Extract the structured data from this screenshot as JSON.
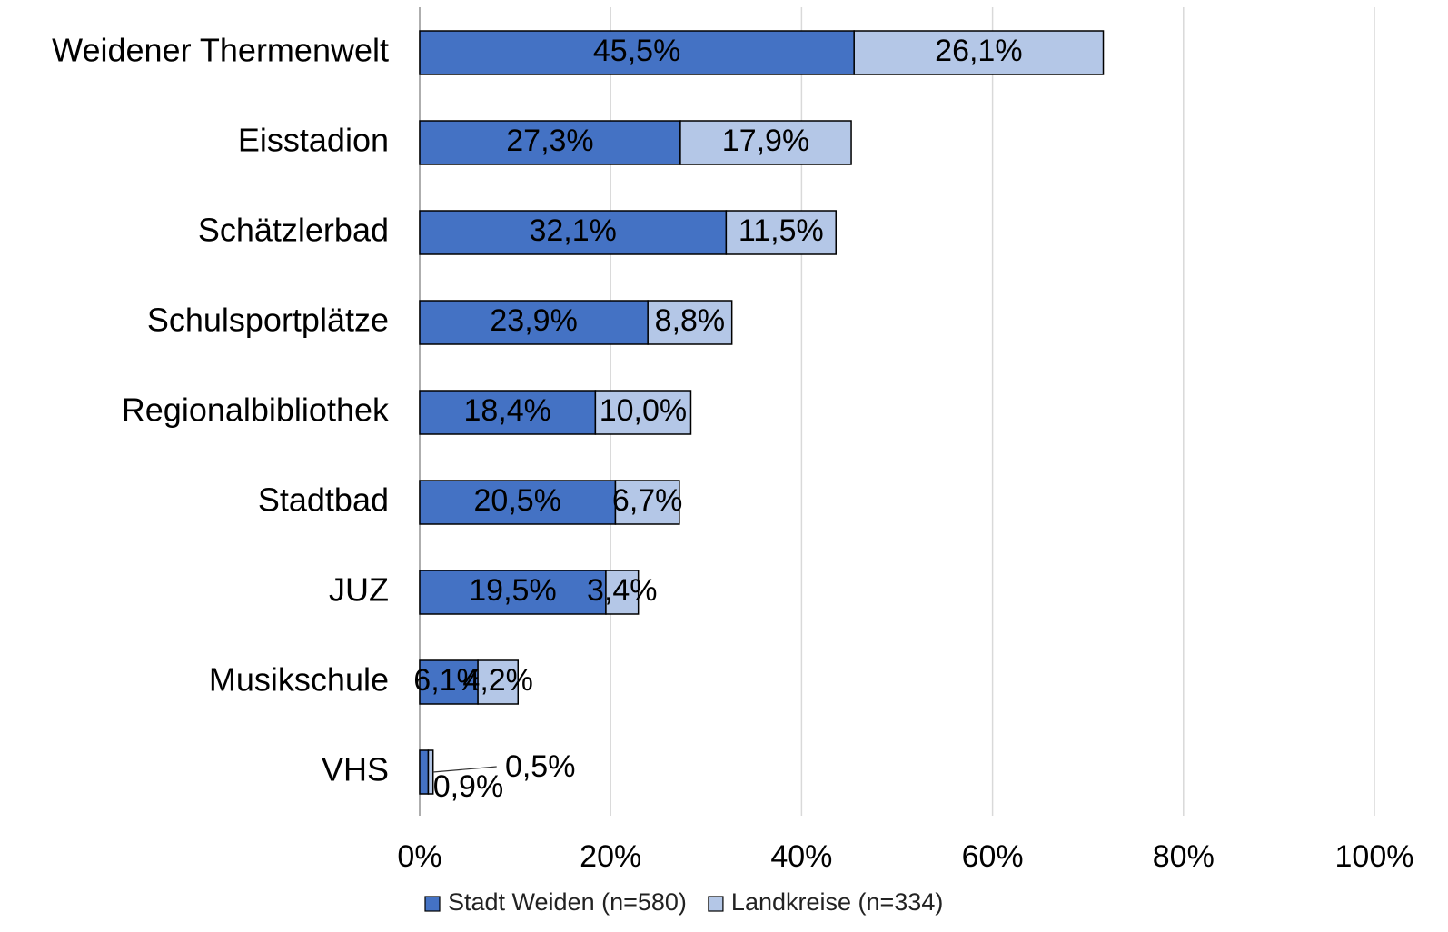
{
  "chart_data": {
    "type": "stacked-barh",
    "categories": [
      "Weidener Thermenwelt",
      "Eisstadion",
      "Schätzlerbad",
      "Schulsportplätze",
      "Regionalbibliothek",
      "Stadtbad",
      "JUZ",
      "Musikschule",
      "VHS"
    ],
    "series": [
      {
        "name": "Stadt Weiden (n=580)",
        "color": "#4472c4",
        "values": [
          45.5,
          27.3,
          32.1,
          23.9,
          18.4,
          20.5,
          19.5,
          6.1,
          0.9
        ],
        "value_labels": [
          "45,5%",
          "27,3%",
          "32,1%",
          "23,9%",
          "18,4%",
          "20,5%",
          "19,5%",
          "6,1%",
          "0,9%"
        ]
      },
      {
        "name": "Landkreise (n=334)",
        "color": "#b4c7e7",
        "values": [
          26.1,
          17.9,
          11.5,
          8.8,
          10.0,
          6.7,
          3.4,
          4.2,
          0.5
        ],
        "value_labels": [
          "26,1%",
          "17,9%",
          "11,5%",
          "8,8%",
          "10,0%",
          "6,7%",
          "3,4%",
          "4,2%",
          "0,5%"
        ]
      }
    ],
    "xlim": [
      0,
      100
    ],
    "xticks": [
      {
        "value": 0,
        "label": "0%"
      },
      {
        "value": 20,
        "label": "20%"
      },
      {
        "value": 40,
        "label": "40%"
      },
      {
        "value": 60,
        "label": "60%"
      },
      {
        "value": 80,
        "label": "80%"
      },
      {
        "value": 100,
        "label": "100%"
      }
    ],
    "grid": true,
    "legend": "bottom"
  }
}
